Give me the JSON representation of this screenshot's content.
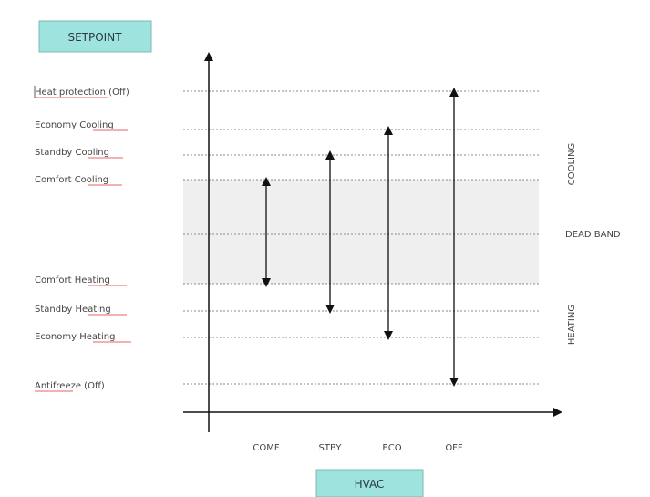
{
  "setpoint_box": {
    "label": "SETPOINT",
    "fill": "#9ee3de"
  },
  "hvac_box": {
    "label": "HVAC",
    "fill": "#9ee3de"
  },
  "setpoint_levels": [
    {
      "key": "heat_protection",
      "label": "Heat protection (Off)"
    },
    {
      "key": "economy_cooling",
      "label": "Economy Cooling"
    },
    {
      "key": "standby_cooling",
      "label": "Standby Cooling"
    },
    {
      "key": "comfort_cooling",
      "label": "Comfort Cooling"
    },
    {
      "key": "comfort_heating",
      "label": "Comfort Heating"
    },
    {
      "key": "standby_heating",
      "label": "Standby Heating"
    },
    {
      "key": "economy_heating",
      "label": "Economy Heating"
    },
    {
      "key": "antifreeze",
      "label": "Antifreeze (Off)"
    }
  ],
  "hvac_modes": [
    {
      "key": "comf",
      "label": "COMF",
      "range": [
        "comfort_cooling",
        "comfort_heating"
      ]
    },
    {
      "key": "stby",
      "label": "STBY",
      "range": [
        "standby_cooling",
        "standby_heating"
      ]
    },
    {
      "key": "eco",
      "label": "ECO",
      "range": [
        "economy_cooling",
        "economy_heating"
      ]
    },
    {
      "key": "off",
      "label": "OFF",
      "range": [
        "heat_protection",
        "antifreeze"
      ]
    }
  ],
  "zones": {
    "cooling": "COOLING",
    "dead_band": "DEAD BAND",
    "heating": "HEATING"
  },
  "colors": {
    "dead_band_fill": "#efefef",
    "line": "#888888",
    "axis": "#111111"
  }
}
